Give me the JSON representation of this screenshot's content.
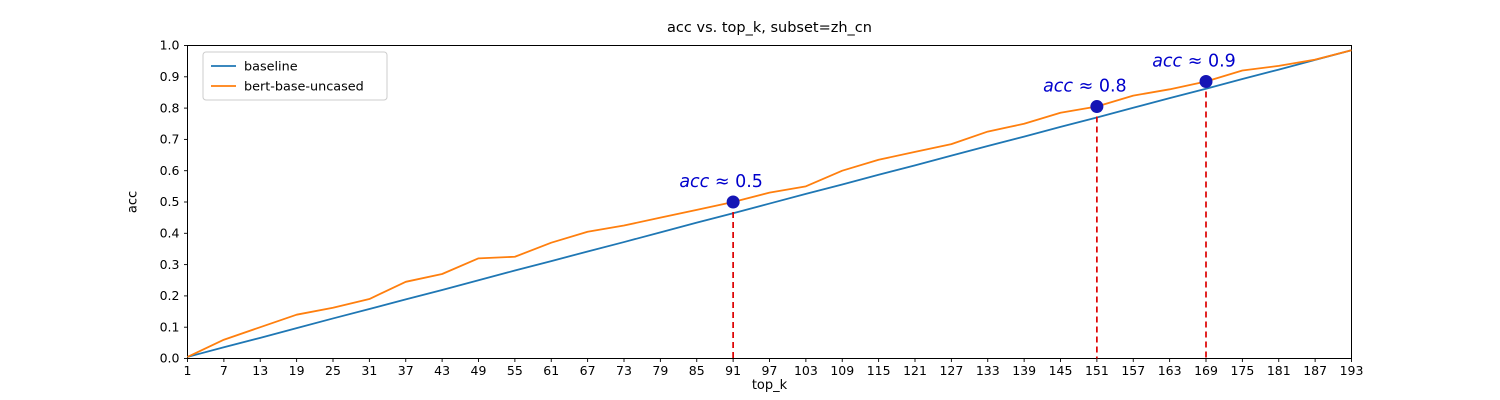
{
  "chart_data": {
    "type": "line",
    "title": "acc vs. top_k, subset=zh_cn",
    "xlabel": "top_k",
    "ylabel": "acc",
    "xlim": [
      1,
      193
    ],
    "ylim": [
      0.0,
      1.0
    ],
    "grid": false,
    "legend_position": "upper left",
    "x_ticks": [
      1,
      7,
      13,
      19,
      25,
      31,
      37,
      43,
      49,
      55,
      61,
      67,
      73,
      79,
      85,
      91,
      97,
      103,
      109,
      115,
      121,
      127,
      133,
      139,
      145,
      151,
      157,
      163,
      169,
      175,
      181,
      187,
      193
    ],
    "y_ticks": [
      "0.0",
      "0.1",
      "0.2",
      "0.3",
      "0.4",
      "0.5",
      "0.6",
      "0.7",
      "0.8",
      "0.9",
      "1.0"
    ],
    "x": [
      1,
      7,
      13,
      19,
      25,
      31,
      37,
      43,
      49,
      55,
      61,
      67,
      73,
      79,
      85,
      91,
      97,
      103,
      109,
      115,
      121,
      127,
      133,
      139,
      145,
      151,
      157,
      163,
      169,
      175,
      181,
      187,
      193
    ],
    "series": [
      {
        "name": "baseline",
        "color": "#1f77b4",
        "values": [
          0.005,
          0.036,
          0.066,
          0.097,
          0.128,
          0.158,
          0.189,
          0.219,
          0.25,
          0.281,
          0.311,
          0.342,
          0.372,
          0.403,
          0.434,
          0.464,
          0.495,
          0.526,
          0.556,
          0.587,
          0.617,
          0.648,
          0.679,
          0.709,
          0.74,
          0.77,
          0.801,
          0.832,
          0.862,
          0.893,
          0.923,
          0.954,
          0.985
        ]
      },
      {
        "name": "bert-base-uncased",
        "color": "#ff7f0e",
        "values": [
          0.005,
          0.06,
          0.1,
          0.14,
          0.162,
          0.19,
          0.245,
          0.27,
          0.32,
          0.325,
          0.37,
          0.405,
          0.425,
          0.45,
          0.475,
          0.5,
          0.53,
          0.55,
          0.6,
          0.635,
          0.66,
          0.685,
          0.725,
          0.75,
          0.785,
          0.805,
          0.84,
          0.86,
          0.885,
          0.92,
          0.935,
          0.955,
          0.985
        ]
      }
    ],
    "annotations": [
      {
        "label": "acc ≈ 0.5",
        "x": 91,
        "y": 0.5
      },
      {
        "label": "acc ≈ 0.8",
        "x": 151,
        "y": 0.805
      },
      {
        "label": "acc ≈ 0.9",
        "x": 169,
        "y": 0.885
      }
    ],
    "colors": {
      "annotation_text": "#0000cc",
      "marker": "#1515b5",
      "vline": "#dd0000",
      "axis": "#000000",
      "legend_border": "#cccccc"
    }
  }
}
